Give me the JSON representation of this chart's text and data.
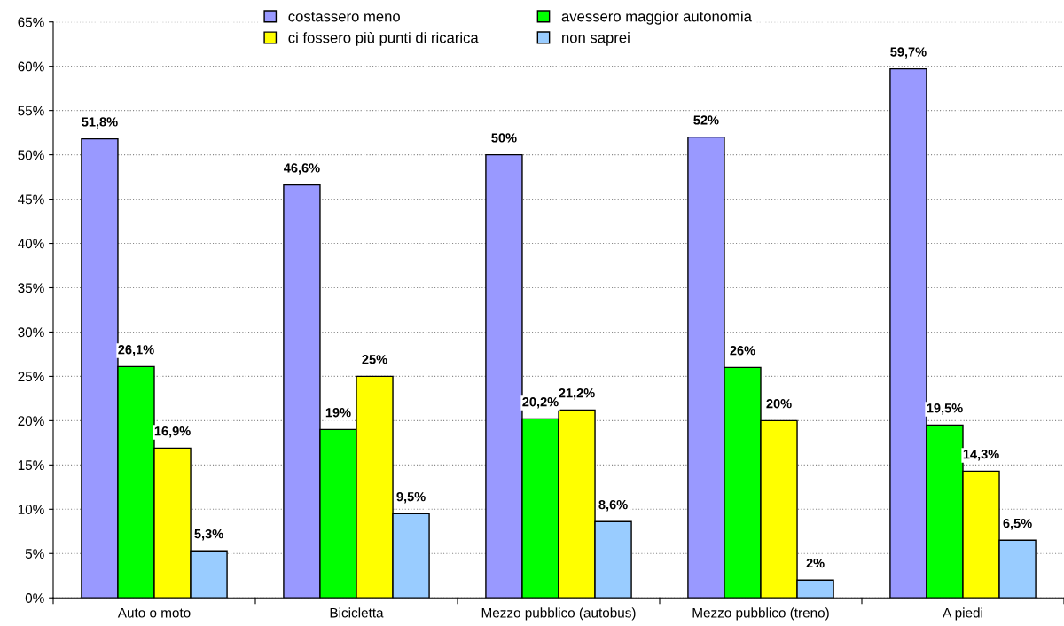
{
  "chart_data": {
    "type": "bar",
    "categories": [
      "Auto o moto",
      "Bicicletta",
      "Mezzo pubblico (autobus)",
      "Mezzo pubblico (treno)",
      "A piedi"
    ],
    "series": [
      {
        "name": "costassero meno",
        "color": "#9999ff",
        "values": [
          51.8,
          46.6,
          50,
          52,
          59.7
        ],
        "value_labels": [
          "51,8%",
          "46,6%",
          "50%",
          "52%",
          "59,7%"
        ]
      },
      {
        "name": "avessero maggior autonomia",
        "color": "#00ff00",
        "values": [
          26.1,
          19,
          20.2,
          26,
          19.5
        ],
        "value_labels": [
          "26,1%",
          "19%",
          "20,2%",
          "26%",
          "19,5%"
        ]
      },
      {
        "name": "ci fossero più punti di ricarica",
        "color": "#ffff00",
        "values": [
          16.9,
          25,
          21.2,
          20,
          14.3
        ],
        "value_labels": [
          "16,9%",
          "25%",
          "21,2%",
          "20%",
          "14,3%"
        ]
      },
      {
        "name": "non saprei",
        "color": "#99ccff",
        "values": [
          5.3,
          9.5,
          8.6,
          2,
          6.5
        ],
        "value_labels": [
          "5,3%",
          "9,5%",
          "8,6%",
          "2%",
          "6,5%"
        ]
      }
    ],
    "ylim": [
      0,
      65
    ],
    "yticks": [
      {
        "value": 0,
        "label": "0%"
      },
      {
        "value": 5,
        "label": "5%"
      },
      {
        "value": 10,
        "label": "10%"
      },
      {
        "value": 15,
        "label": "15%"
      },
      {
        "value": 20,
        "label": "20%"
      },
      {
        "value": 25,
        "label": "25%"
      },
      {
        "value": 30,
        "label": "30%"
      },
      {
        "value": 35,
        "label": "35%"
      },
      {
        "value": 40,
        "label": "40%"
      },
      {
        "value": 45,
        "label": "45%"
      },
      {
        "value": 50,
        "label": "50%"
      },
      {
        "value": 55,
        "label": "55%"
      },
      {
        "value": 60,
        "label": "60%"
      },
      {
        "value": 65,
        "label": "65%"
      }
    ],
    "grid": "y",
    "legend": "top"
  }
}
